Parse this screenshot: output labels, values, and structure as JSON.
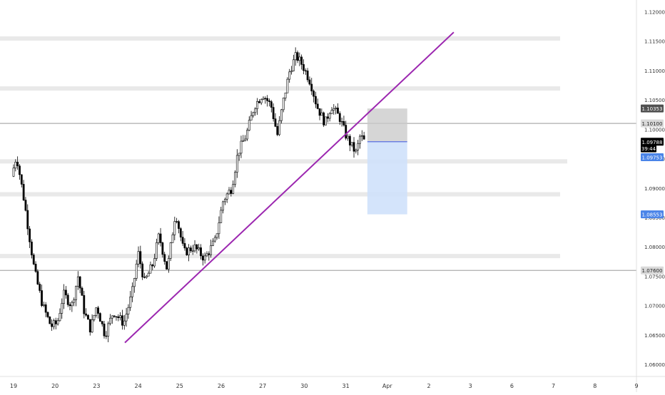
{
  "chart_data": {
    "type": "candlestick",
    "instrument_hint": "",
    "y_axis": {
      "range": [
        1.0585,
        1.1215
      ],
      "ticks": [
        "1.12000",
        "1.11500",
        "1.11000",
        "1.10500",
        "1.10000",
        "1.09500",
        "1.09000",
        "1.08500",
        "1.08000",
        "1.07500",
        "1.07000",
        "1.06500",
        "1.06000"
      ],
      "tick_values": [
        1.12,
        1.115,
        1.11,
        1.105,
        1.1,
        1.095,
        1.09,
        1.085,
        1.08,
        1.075,
        1.07,
        1.065,
        1.06
      ]
    },
    "x_axis": {
      "labels": [
        "19",
        "20",
        "23",
        "24",
        "25",
        "26",
        "27",
        "30",
        "31",
        "Apr",
        "2",
        "3",
        "6",
        "7",
        "8",
        "9"
      ],
      "label_positions_index": [
        0,
        1,
        2,
        3,
        4,
        5,
        6,
        7,
        8,
        9,
        10,
        11,
        12,
        13,
        14,
        15
      ]
    },
    "price_tags": [
      {
        "label": "1.10353",
        "value": 1.10353,
        "style": "dark-gray"
      },
      {
        "label": "1.10100",
        "value": 1.101,
        "style": "light-gray"
      },
      {
        "label": "1.09788",
        "value": 1.09788,
        "style": "black"
      },
      {
        "label": "39:44",
        "value": 1.09675,
        "style": "black"
      },
      {
        "label": "1.09753",
        "value": 1.09525,
        "style": "blue"
      },
      {
        "label": "1.08553",
        "value": 1.08553,
        "style": "blue"
      },
      {
        "label": "1.07600",
        "value": 1.076,
        "style": "light-gray"
      }
    ],
    "zones": [
      {
        "name": "resistance-zone-1",
        "price_low": 1.1152,
        "price_high": 1.1158
      },
      {
        "name": "resistance-zone-2",
        "price_low": 1.1067,
        "price_high": 1.1073
      },
      {
        "name": "support-zone-1",
        "price_low": 1.0943,
        "price_high": 1.0949
      },
      {
        "name": "support-zone-2",
        "price_low": 1.0887,
        "price_high": 1.0893
      },
      {
        "name": "support-zone-3",
        "price_low": 1.0782,
        "price_high": 1.0788
      }
    ],
    "horizontal_lines": [
      {
        "name": "line-1.10100",
        "price": 1.101
      },
      {
        "name": "line-1.07600",
        "price": 1.076
      }
    ],
    "trendline": {
      "x1_day": 2.68,
      "y1": 1.0637,
      "x2_day": 10.6,
      "y2": 1.1165,
      "color": "#9c27b0"
    },
    "position_tool": {
      "x_start_day": 8.52,
      "x_end_day": 9.48,
      "stop_top": 1.10353,
      "entry": 1.09788,
      "target": 1.08553,
      "stop_color": "#c8c8c8",
      "target_color": "#cfe1fb",
      "entry_line_color": "#5b6ee1"
    },
    "candles": []
  },
  "colors": {
    "candle_up": "#ffffff",
    "candle_down": "#000000",
    "candle_border": "#000000",
    "zone_fill": "#e9e9e9",
    "axis_text": "#333333",
    "blue_tag": "#4a84e8",
    "dark_tag": "#505050",
    "light_tag": "#d9d9d9"
  }
}
